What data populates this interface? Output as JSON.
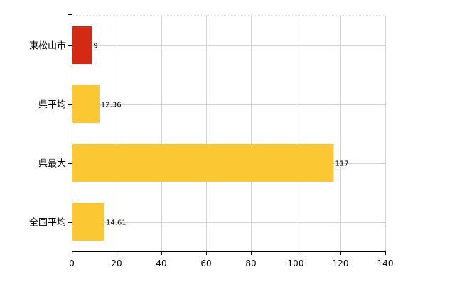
{
  "chart_data": {
    "type": "bar",
    "orientation": "horizontal",
    "categories": [
      "東松山市",
      "県平均",
      "県最大",
      "全国平均"
    ],
    "values": [
      9,
      12.36,
      117,
      14.61
    ],
    "data_labels": [
      "9",
      "12.36",
      "117",
      "14.61"
    ],
    "xlim": [
      0,
      140
    ],
    "x_ticks": [
      0,
      20,
      40,
      60,
      80,
      100,
      120,
      140
    ],
    "x_tick_labels": [
      "0",
      "20",
      "40",
      "60",
      "80",
      "100",
      "120",
      "140"
    ],
    "grid": true,
    "legend": "none",
    "colors": {
      "highlight": "#d42a14",
      "default": "#fbc732",
      "grid": "#d3d3d3",
      "axis": "#000000"
    },
    "highlight_index": 0
  }
}
